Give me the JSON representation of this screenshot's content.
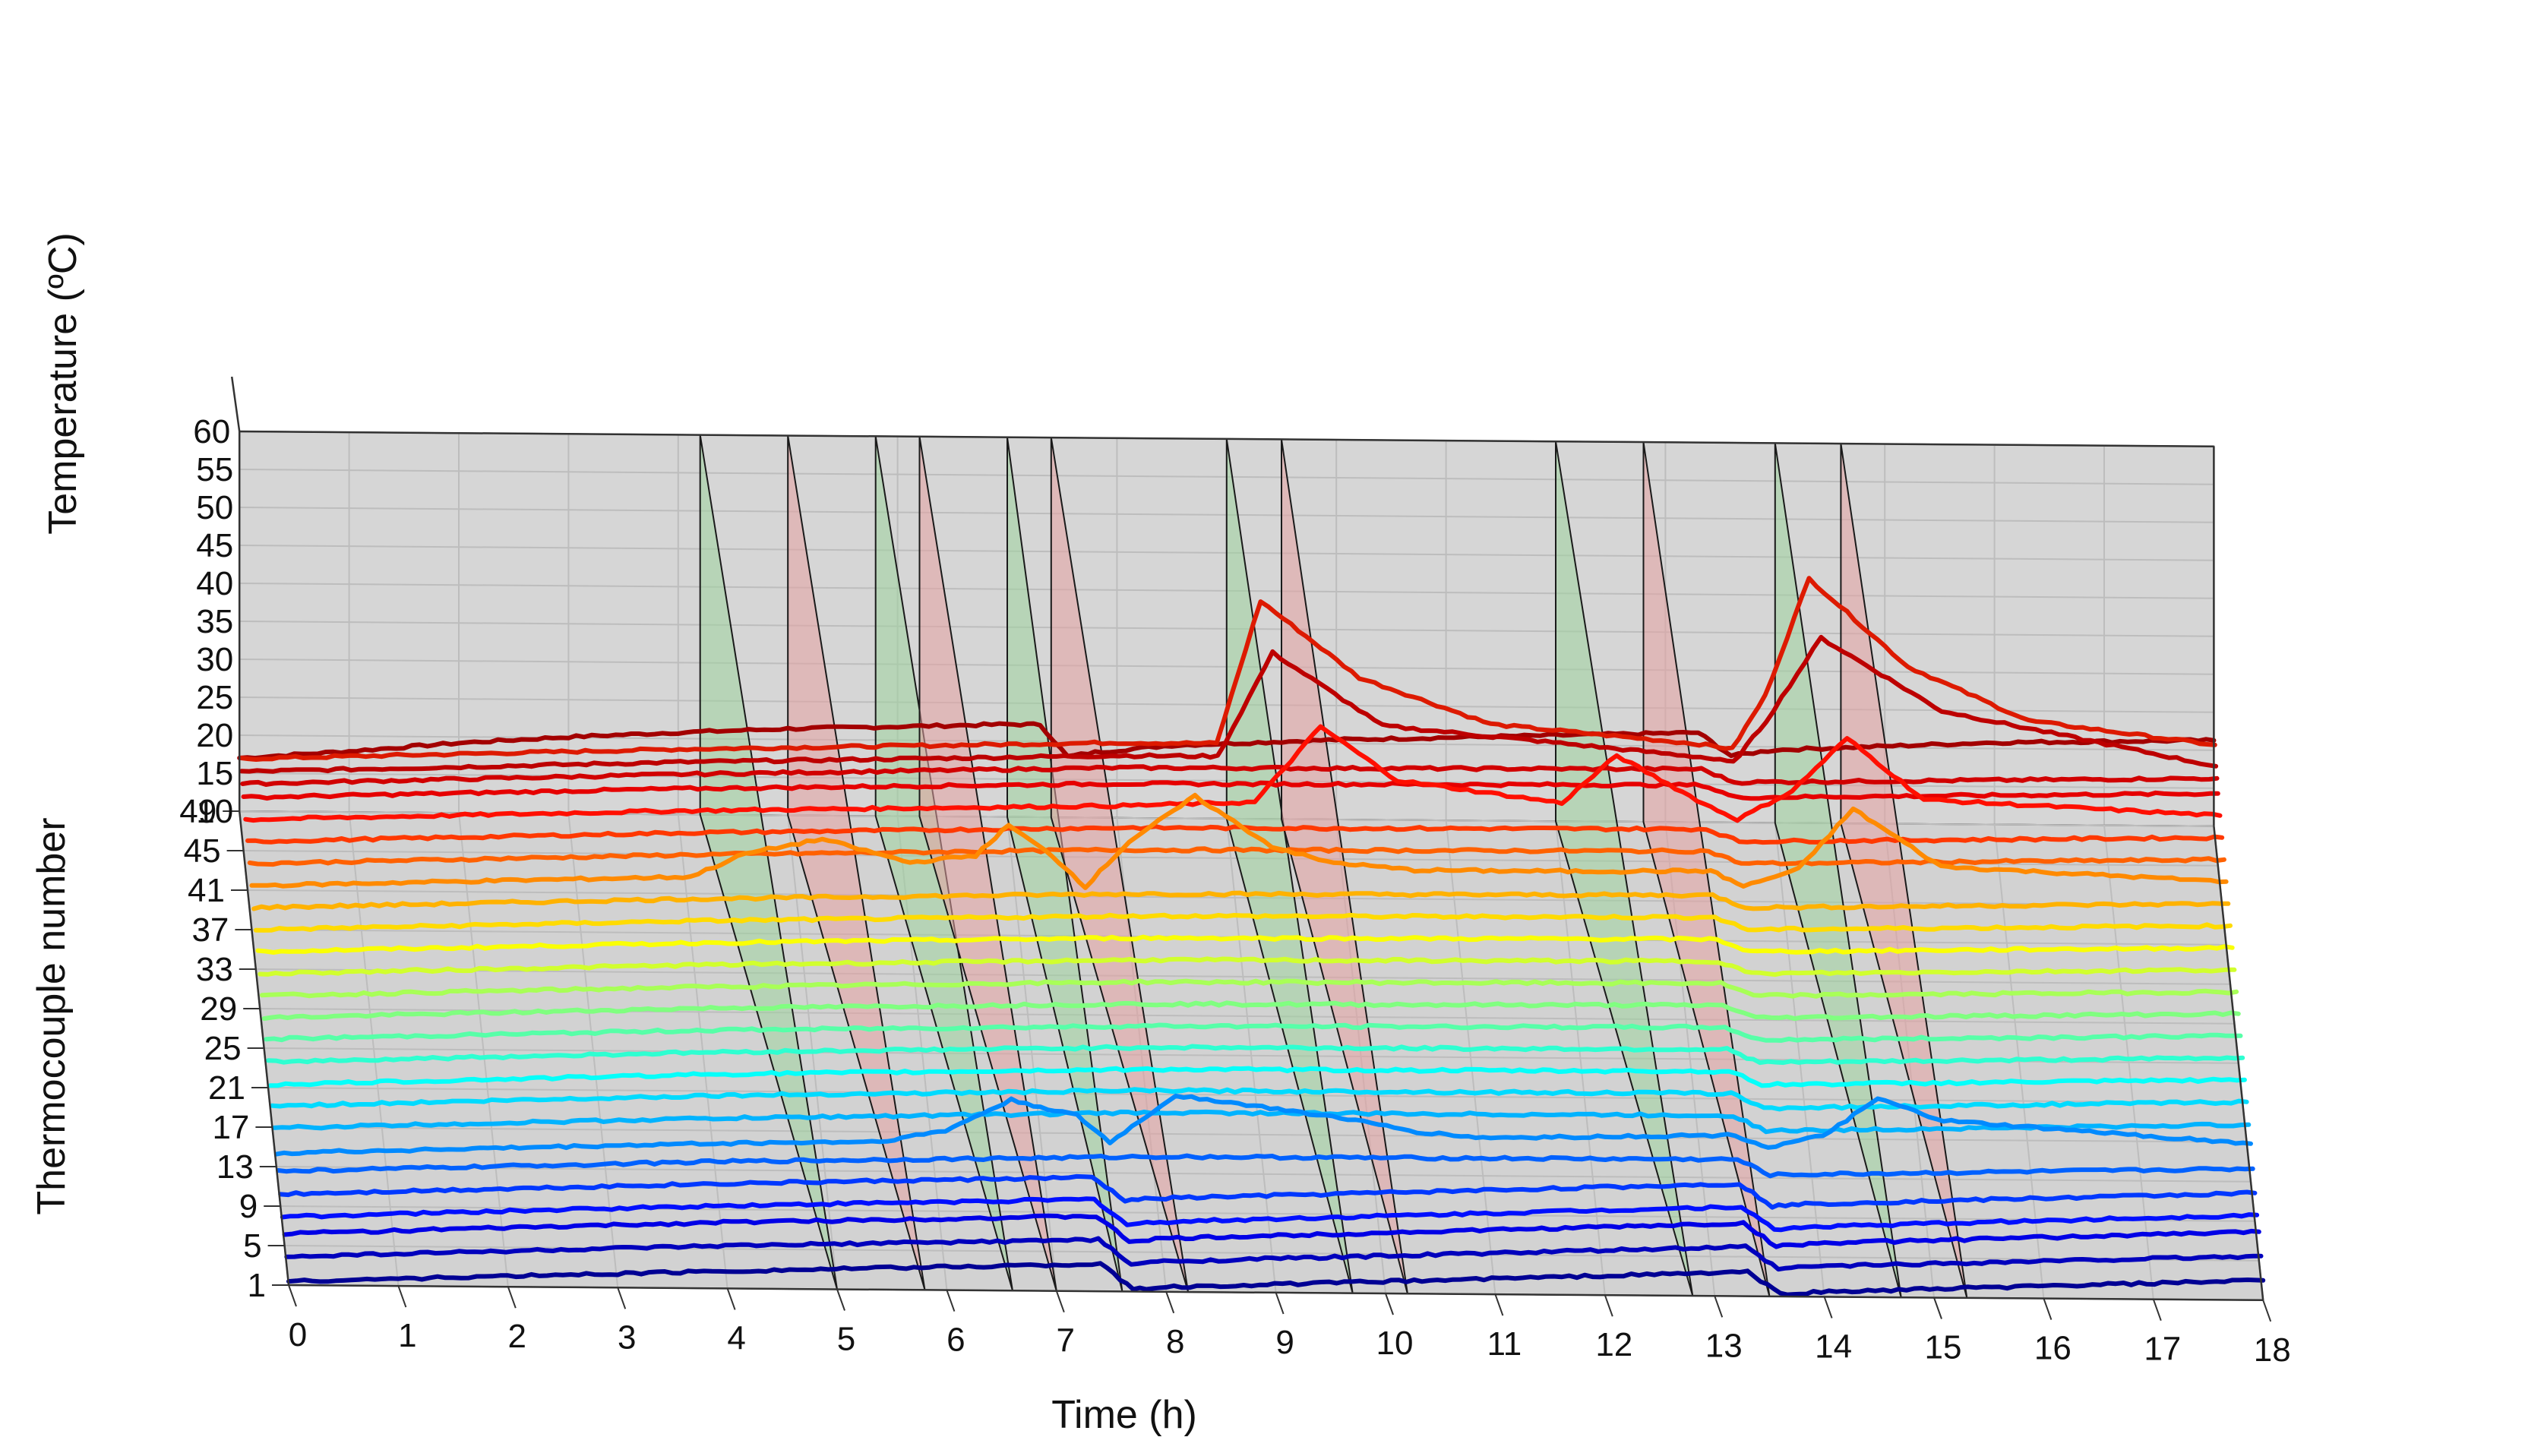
{
  "chart_data": {
    "type": "line",
    "title": "",
    "xlabel": "Time (h)",
    "ylabel": "Thermocouple number",
    "zlabel": "Temperature (ºC)",
    "xlim": [
      0,
      18
    ],
    "ylim": [
      1,
      49
    ],
    "zlim": [
      10,
      60
    ],
    "x_ticks": [
      "0",
      "1",
      "2",
      "3",
      "4",
      "5",
      "6",
      "7",
      "8",
      "9",
      "10",
      "11",
      "12",
      "13",
      "14",
      "15",
      "16",
      "17",
      "18"
    ],
    "y_ticks": [
      "1",
      "5",
      "9",
      "13",
      "17",
      "21",
      "25",
      "29",
      "33",
      "37",
      "41",
      "45",
      "49"
    ],
    "z_ticks": [
      "10",
      "15",
      "20",
      "25",
      "30",
      "35",
      "40",
      "45",
      "50",
      "55",
      "60"
    ],
    "grid": true,
    "shaded_intervals": [
      {
        "color": "#9ed39e",
        "x": [
          4.2,
          5.0
        ]
      },
      {
        "color": "#e6a3a3",
        "x": [
          5.0,
          5.8
        ]
      },
      {
        "color": "#9ed39e",
        "x": [
          5.8,
          6.6
        ]
      },
      {
        "color": "#e6a3a3",
        "x": [
          6.2,
          7.0
        ]
      },
      {
        "color": "#9ed39e",
        "x": [
          7.0,
          7.6
        ]
      },
      {
        "color": "#e6a3a3",
        "x": [
          7.4,
          8.2
        ]
      },
      {
        "color": "#9ed39e",
        "x": [
          9.0,
          9.7
        ]
      },
      {
        "color": "#e6a3a3",
        "x": [
          9.5,
          10.2
        ]
      },
      {
        "color": "#9ed39e",
        "x": [
          12.0,
          12.8
        ]
      },
      {
        "color": "#e6a3a3",
        "x": [
          12.8,
          13.5
        ]
      },
      {
        "color": "#9ed39e",
        "x": [
          14.0,
          14.7
        ]
      },
      {
        "color": "#e6a3a3",
        "x": [
          14.6,
          15.3
        ]
      }
    ],
    "series": [
      {
        "tc": 1,
        "x": [
          0,
          4,
          7.4,
          7.7,
          8,
          13.3,
          13.6,
          13.9,
          18
        ],
        "z": [
          10.5,
          12.3,
          13.6,
          10.3,
          10.6,
          13.2,
          10.3,
          10.6,
          12.6
        ]
      },
      {
        "tc": 3,
        "x": [
          0,
          4,
          7.4,
          7.7,
          8,
          13.3,
          13.6,
          13.9,
          18
        ],
        "z": [
          11.2,
          13.0,
          14.2,
          11.0,
          11.4,
          13.9,
          11.0,
          11.4,
          13.2
        ]
      },
      {
        "tc": 5,
        "x": [
          0,
          4,
          7.4,
          7.7,
          8,
          13.3,
          13.6,
          13.9,
          18
        ],
        "z": [
          11.6,
          13.5,
          14.7,
          11.4,
          11.8,
          14.4,
          11.4,
          11.8,
          13.8
        ]
      },
      {
        "tc": 7,
        "x": [
          0,
          4,
          7.4,
          7.7,
          8,
          13.3,
          13.6,
          13.9,
          18
        ],
        "z": [
          11.2,
          13.1,
          14.3,
          11.0,
          11.4,
          14.0,
          11.0,
          11.4,
          13.4
        ]
      },
      {
        "tc": 9,
        "x": [
          0,
          4,
          7.4,
          7.7,
          8,
          13.3,
          13.6,
          13.9,
          18
        ],
        "z": [
          11.6,
          13.4,
          14.6,
          11.6,
          11.9,
          14.4,
          11.5,
          11.8,
          13.7
        ]
      },
      {
        "tc": 11,
        "x": [
          0,
          4,
          8,
          13.3,
          13.6,
          18
        ],
        "z": [
          12.0,
          13.7,
          14.8,
          15.0,
          13.0,
          14.3
        ]
      },
      {
        "tc": 13,
        "x": [
          0,
          4,
          5.5,
          6.1,
          6.7,
          7.3,
          7.6,
          8.2,
          9.7,
          10.4,
          11,
          13.3,
          13.6,
          14.1,
          14.6,
          15.2,
          18
        ],
        "z": [
          11.8,
          13.5,
          13.9,
          15.4,
          19.5,
          17.5,
          14.0,
          20.3,
          17.5,
          15.7,
          15.0,
          15.6,
          14.0,
          15.6,
          20.5,
          17.7,
          15.0
        ]
      },
      {
        "tc": 15,
        "x": [
          0,
          4,
          8,
          13.3,
          13.6,
          18
        ],
        "z": [
          12.5,
          14.2,
          15.4,
          15.6,
          13.6,
          14.9
        ]
      },
      {
        "tc": 17,
        "x": [
          0,
          4,
          8,
          13.3,
          13.6,
          18
        ],
        "z": [
          12.8,
          14.6,
          15.7,
          15.9,
          14.0,
          15.3
        ]
      },
      {
        "tc": 19,
        "x": [
          0,
          4,
          8,
          13.3,
          13.6,
          18
        ],
        "z": [
          13.0,
          14.8,
          15.9,
          16.2,
          14.5,
          15.6
        ]
      },
      {
        "tc": 21,
        "x": [
          0,
          4,
          8,
          13.3,
          13.6,
          18
        ],
        "z": [
          13.4,
          15.1,
          16.2,
          16.5,
          14.8,
          15.9
        ]
      },
      {
        "tc": 23,
        "x": [
          0,
          4,
          8,
          13.3,
          13.6,
          18
        ],
        "z": [
          13.8,
          15.4,
          16.4,
          16.8,
          15.2,
          16.2
        ]
      },
      {
        "tc": 25,
        "x": [
          0,
          4,
          8,
          13.3,
          13.6,
          18
        ],
        "z": [
          14.0,
          15.7,
          16.7,
          17.1,
          15.5,
          16.5
        ]
      },
      {
        "tc": 27,
        "x": [
          0,
          4,
          8,
          13.3,
          13.6,
          18
        ],
        "z": [
          14.3,
          15.9,
          17.0,
          17.4,
          15.8,
          16.8
        ]
      },
      {
        "tc": 29,
        "x": [
          0,
          4,
          8,
          13.3,
          13.6,
          18
        ],
        "z": [
          14.6,
          16.2,
          17.3,
          17.7,
          16.1,
          17.1
        ]
      },
      {
        "tc": 31,
        "x": [
          0,
          4,
          8,
          13.3,
          13.6,
          18
        ],
        "z": [
          14.9,
          16.5,
          17.6,
          18.0,
          16.4,
          17.4
        ]
      },
      {
        "tc": 33,
        "x": [
          0,
          4,
          8,
          13.3,
          13.6,
          18
        ],
        "z": [
          15.2,
          16.8,
          17.9,
          18.3,
          16.7,
          17.7
        ]
      },
      {
        "tc": 35,
        "x": [
          0,
          4,
          8,
          13.3,
          13.6,
          18
        ],
        "z": [
          15.5,
          17.1,
          18.2,
          18.6,
          17.0,
          18.0
        ]
      },
      {
        "tc": 37,
        "x": [
          0,
          4,
          4.5,
          5.2,
          6,
          6.6,
          6.9,
          7.3,
          7.6,
          8,
          8.6,
          9.3,
          9.8,
          10.6,
          12,
          13.3,
          13.6,
          14.1,
          14.6,
          15.4,
          18
        ],
        "z": [
          15.8,
          17.4,
          20.5,
          22.5,
          19.5,
          20.5,
          24.5,
          20.5,
          16.5,
          22.5,
          28.5,
          22.0,
          20.0,
          19.0,
          19.0,
          19.2,
          17.2,
          19.5,
          27.5,
          20.0,
          18.3
        ]
      },
      {
        "tc": 39,
        "x": [
          0,
          4,
          8,
          13.3,
          13.6,
          18
        ],
        "z": [
          16.1,
          17.7,
          18.8,
          19.2,
          17.6,
          18.6
        ]
      },
      {
        "tc": 41,
        "x": [
          0,
          4,
          8,
          13.3,
          13.6,
          18
        ],
        "z": [
          16.4,
          18.0,
          19.1,
          19.5,
          17.9,
          18.9
        ]
      },
      {
        "tc": 43,
        "x": [
          0,
          4,
          8,
          9.2,
          9.8,
          10.5,
          12,
          12.5,
          13.3,
          13.6,
          14.1,
          14.6,
          15.3,
          18
        ],
        "z": [
          16.7,
          18.3,
          19.4,
          20.0,
          30.0,
          23.0,
          20.2,
          26.5,
          20.2,
          18.2,
          22.0,
          29.0,
          21.0,
          19.2
        ]
      },
      {
        "tc": 45,
        "x": [
          0,
          4,
          8,
          13.3,
          13.6,
          18
        ],
        "z": [
          17.0,
          18.6,
          19.7,
          20.1,
          18.5,
          19.5
        ]
      },
      {
        "tc": 46,
        "x": [
          0,
          4,
          8,
          13.3,
          13.6,
          18
        ],
        "z": [
          17.5,
          19.2,
          20.5,
          20.9,
          19.2,
          20.2
        ]
      },
      {
        "tc": 47,
        "x": [
          0,
          4,
          8,
          8.9,
          9.4,
          10.4,
          13.3,
          13.6,
          13.9,
          14.4,
          15.5,
          18
        ],
        "z": [
          17.8,
          19.5,
          20.8,
          20.8,
          34.5,
          25.0,
          21.2,
          20.5,
          26.0,
          37.0,
          27.5,
          20.5
        ]
      },
      {
        "tc": 48,
        "x": [
          0,
          4,
          8,
          8.9,
          9.3,
          10.2,
          11.4,
          13.3,
          13.6,
          13.9,
          14.3,
          15.2,
          16.3,
          18
        ],
        "z": [
          18.2,
          19.9,
          21.2,
          21.2,
          40.0,
          30.0,
          24.0,
          21.6,
          21.0,
          28.0,
          43.5,
          32.0,
          25.0,
          22.0
        ]
      },
      {
        "tc": 49,
        "x": [
          0,
          1,
          2,
          3,
          4,
          5,
          6,
          7,
          7.3,
          7.55,
          7.8,
          8.5,
          10,
          12,
          13.3,
          13.6,
          14,
          16,
          18
        ],
        "z": [
          17.0,
          18.0,
          19.2,
          20.1,
          20.8,
          21.4,
          21.8,
          22.2,
          22.2,
          18.0,
          18.6,
          19.6,
          20.5,
          21.3,
          21.8,
          18.8,
          19.6,
          20.8,
          21.3
        ]
      }
    ]
  }
}
